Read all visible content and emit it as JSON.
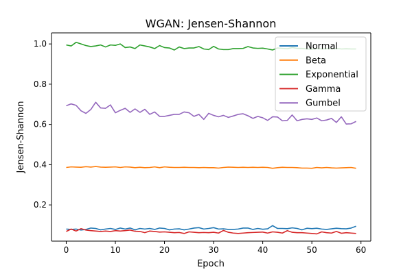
{
  "chart_data": {
    "type": "line",
    "title": "WGAN: Jensen-Shannon",
    "xlabel": "Epoch",
    "ylabel": "Jensen-Shannon",
    "xlim": [
      -3,
      62
    ],
    "ylim": [
      0.02,
      1.055
    ],
    "xticks": [
      0,
      10,
      20,
      30,
      40,
      50,
      60
    ],
    "yticks": [
      0.2,
      0.4,
      0.6,
      0.8,
      1.0
    ],
    "xtick_labels": [
      "0",
      "10",
      "20",
      "30",
      "40",
      "50",
      "60"
    ],
    "ytick_labels": [
      "0.2",
      "0.4",
      "0.6",
      "0.8",
      "1.0"
    ],
    "legend_position": "top-right",
    "x": [
      0,
      1,
      2,
      3,
      4,
      5,
      6,
      7,
      8,
      9,
      10,
      11,
      12,
      13,
      14,
      15,
      16,
      17,
      18,
      19,
      20,
      21,
      22,
      23,
      24,
      25,
      26,
      27,
      28,
      29,
      30,
      31,
      32,
      33,
      34,
      35,
      36,
      37,
      38,
      39,
      40,
      41,
      42,
      43,
      44,
      45,
      46,
      47,
      48,
      49,
      50,
      51,
      52,
      53,
      54,
      55,
      56,
      57,
      58,
      59
    ],
    "series": [
      {
        "name": "Normal",
        "color": "#1f77b4",
        "values": [
          0.08,
          0.078,
          0.08,
          0.075,
          0.078,
          0.085,
          0.083,
          0.076,
          0.08,
          0.083,
          0.078,
          0.085,
          0.08,
          0.085,
          0.076,
          0.083,
          0.08,
          0.083,
          0.078,
          0.085,
          0.083,
          0.076,
          0.08,
          0.081,
          0.076,
          0.08,
          0.085,
          0.087,
          0.08,
          0.083,
          0.087,
          0.08,
          0.081,
          0.078,
          0.078,
          0.08,
          0.085,
          0.085,
          0.078,
          0.083,
          0.079,
          0.081,
          0.097,
          0.083,
          0.083,
          0.082,
          0.086,
          0.083,
          0.076,
          0.084,
          0.082,
          0.084,
          0.08,
          0.078,
          0.081,
          0.084,
          0.082,
          0.081,
          0.085,
          0.094
        ]
      },
      {
        "name": "Beta",
        "color": "#ff7f0e",
        "values": [
          0.386,
          0.389,
          0.388,
          0.387,
          0.39,
          0.388,
          0.391,
          0.388,
          0.387,
          0.388,
          0.389,
          0.386,
          0.389,
          0.388,
          0.385,
          0.387,
          0.385,
          0.386,
          0.389,
          0.385,
          0.389,
          0.387,
          0.386,
          0.386,
          0.387,
          0.386,
          0.386,
          0.385,
          0.386,
          0.385,
          0.385,
          0.383,
          0.386,
          0.388,
          0.387,
          0.386,
          0.387,
          0.386,
          0.387,
          0.386,
          0.387,
          0.386,
          0.382,
          0.385,
          0.387,
          0.386,
          0.386,
          0.385,
          0.383,
          0.383,
          0.382,
          0.386,
          0.384,
          0.386,
          0.384,
          0.383,
          0.384,
          0.385,
          0.386,
          0.382
        ]
      },
      {
        "name": "Exponential",
        "color": "#2ca02c",
        "values": [
          0.995,
          0.99,
          1.008,
          1.0,
          0.992,
          0.987,
          0.99,
          0.995,
          0.985,
          0.995,
          0.993,
          1.0,
          0.982,
          0.985,
          0.977,
          0.995,
          0.99,
          0.985,
          0.977,
          0.992,
          0.982,
          0.98,
          0.97,
          0.985,
          0.977,
          0.98,
          0.98,
          0.987,
          0.975,
          0.972,
          0.988,
          0.975,
          0.972,
          0.972,
          0.977,
          0.977,
          0.978,
          0.987,
          0.98,
          0.978,
          0.979,
          0.975,
          0.97,
          0.98,
          0.978,
          0.976,
          0.982,
          0.978,
          0.978,
          0.975,
          0.974,
          0.978,
          0.975,
          0.977,
          0.976,
          0.978,
          0.975,
          0.976,
          0.975,
          0.975
        ]
      },
      {
        "name": "Gamma",
        "color": "#d62728",
        "values": [
          0.068,
          0.08,
          0.07,
          0.082,
          0.075,
          0.072,
          0.07,
          0.068,
          0.07,
          0.068,
          0.072,
          0.07,
          0.072,
          0.075,
          0.069,
          0.068,
          0.062,
          0.07,
          0.068,
          0.065,
          0.066,
          0.064,
          0.062,
          0.063,
          0.058,
          0.066,
          0.064,
          0.062,
          0.063,
          0.062,
          0.064,
          0.06,
          0.073,
          0.064,
          0.06,
          0.058,
          0.06,
          0.062,
          0.063,
          0.064,
          0.065,
          0.06,
          0.066,
          0.064,
          0.06,
          0.072,
          0.064,
          0.062,
          0.062,
          0.06,
          0.058,
          0.056,
          0.066,
          0.062,
          0.06,
          0.068,
          0.059,
          0.062,
          0.06,
          0.058
        ]
      },
      {
        "name": "Gumbel",
        "color": "#9467bd",
        "values": [
          0.693,
          0.702,
          0.695,
          0.668,
          0.655,
          0.674,
          0.71,
          0.682,
          0.68,
          0.697,
          0.658,
          0.67,
          0.68,
          0.66,
          0.677,
          0.66,
          0.675,
          0.65,
          0.662,
          0.64,
          0.64,
          0.645,
          0.65,
          0.65,
          0.662,
          0.658,
          0.64,
          0.65,
          0.625,
          0.655,
          0.645,
          0.638,
          0.645,
          0.635,
          0.642,
          0.65,
          0.653,
          0.643,
          0.63,
          0.64,
          0.633,
          0.62,
          0.638,
          0.637,
          0.618,
          0.62,
          0.647,
          0.618,
          0.625,
          0.628,
          0.625,
          0.632,
          0.618,
          0.622,
          0.63,
          0.61,
          0.638,
          0.602,
          0.603,
          0.615
        ]
      }
    ]
  }
}
